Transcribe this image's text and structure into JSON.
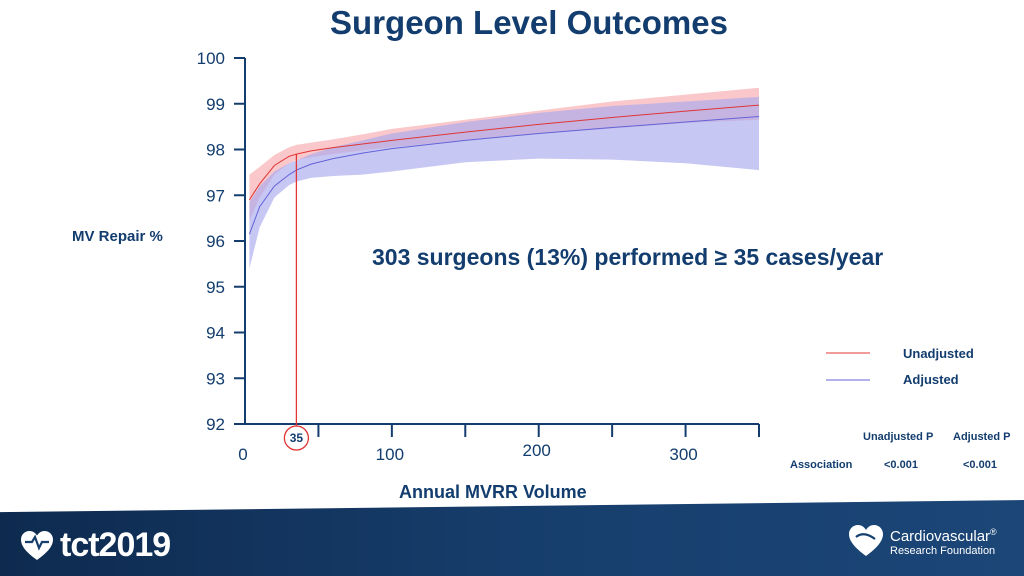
{
  "title": "Surgeon Level Outcomes",
  "annotation": "303 surgeons (13%) performed ≥ 35 cases/year",
  "threshold_label": "35",
  "chart_data": {
    "type": "line",
    "xlabel": "Annual MVRR Volume",
    "ylabel": "MV Repair %",
    "xlim": [
      0,
      350
    ],
    "ylim": [
      92,
      100
    ],
    "xticks": [
      0,
      100,
      200,
      300
    ],
    "yticks": [
      92,
      93,
      94,
      95,
      96,
      97,
      98,
      99,
      100
    ],
    "threshold_x": 35,
    "colors": {
      "unadjusted": "#e03535",
      "unadjusted_band": "#f7a4a8",
      "adjusted": "#6363d8",
      "adjusted_band": "#a9a9ee"
    },
    "series": [
      {
        "name": "Unadjusted",
        "x": [
          3,
          10,
          20,
          30,
          35,
          45,
          60,
          80,
          100,
          150,
          200,
          250,
          300,
          350
        ],
        "y": [
          96.9,
          97.25,
          97.65,
          97.85,
          97.9,
          97.97,
          98.04,
          98.12,
          98.2,
          98.38,
          98.55,
          98.7,
          98.84,
          98.97
        ],
        "lower": [
          96.45,
          96.95,
          97.45,
          97.7,
          97.77,
          97.83,
          97.9,
          97.98,
          98.05,
          98.2,
          98.34,
          98.46,
          98.58,
          98.65
        ],
        "upper": [
          97.45,
          97.62,
          97.88,
          98.05,
          98.1,
          98.15,
          98.22,
          98.33,
          98.45,
          98.65,
          98.85,
          99.05,
          99.2,
          99.35
        ]
      },
      {
        "name": "Adjusted",
        "x": [
          3,
          10,
          20,
          30,
          35,
          45,
          60,
          80,
          100,
          150,
          200,
          250,
          300,
          350
        ],
        "y": [
          96.15,
          96.75,
          97.2,
          97.45,
          97.55,
          97.68,
          97.8,
          97.92,
          98.02,
          98.2,
          98.35,
          98.48,
          98.6,
          98.72
        ],
        "lower": [
          95.4,
          96.3,
          96.95,
          97.22,
          97.3,
          97.38,
          97.42,
          97.45,
          97.52,
          97.72,
          97.8,
          97.78,
          97.7,
          97.55
        ],
        "upper": [
          96.85,
          97.2,
          97.52,
          97.7,
          97.76,
          97.9,
          98.05,
          98.2,
          98.35,
          98.6,
          98.8,
          98.95,
          99.05,
          99.15
        ]
      }
    ]
  },
  "legend": {
    "unadjusted": "Unadjusted",
    "adjusted": "Adjusted"
  },
  "stats": {
    "col1": "Unadjusted P",
    "col2": "Adjusted P",
    "row_label": "Association",
    "unadjusted_p": "<0.001",
    "adjusted_p": "<0.001"
  },
  "footer": {
    "left_logo": "tct2019",
    "right_logo_line1": "Cardiovascular",
    "right_logo_line2": "Research Foundation",
    "registered": "®"
  }
}
